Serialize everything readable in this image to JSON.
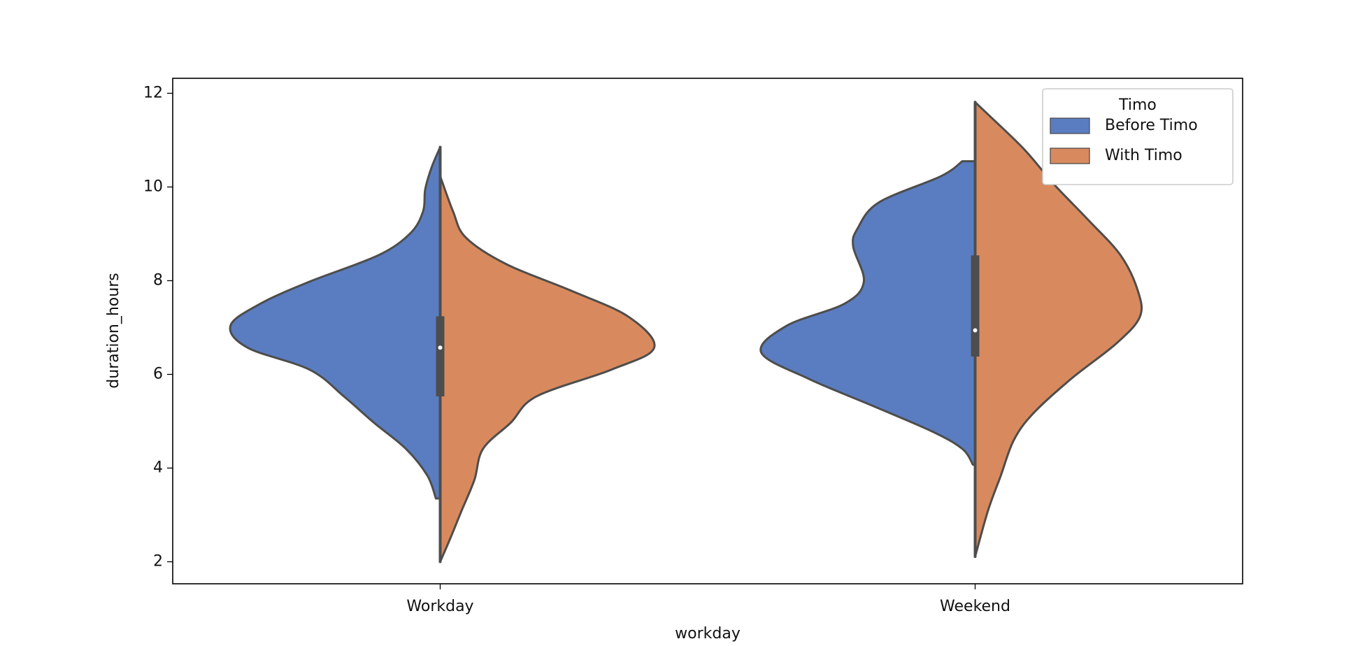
{
  "chart_data": {
    "type": "violin",
    "split": true,
    "xlabel": "workday",
    "ylabel": "duration_hours",
    "categories": [
      "Workday",
      "Weekend"
    ],
    "ylim": [
      1.53,
      12.32
    ],
    "yticks": [
      2,
      4,
      6,
      8,
      10,
      12
    ],
    "legend": {
      "title": "Timo",
      "loc": "upper right"
    },
    "edge_color": "#4d4d4d",
    "series": [
      {
        "name": "Before Timo",
        "color": "#5a7dc1",
        "side": "left",
        "violins": [
          {
            "y": [
              10.85,
              10.42,
              9.95,
              9.48,
              9.01,
              8.54,
              7.98,
              7.51,
              7.04,
              6.57,
              6.1,
              5.53,
              4.97,
              4.41,
              3.84,
              3.35
            ],
            "density": [
              0,
              0.04,
              0.07,
              0.08,
              0.14,
              0.29,
              0.61,
              0.84,
              0.98,
              0.9,
              0.61,
              0.45,
              0.31,
              0.16,
              0.06,
              0.02
            ]
          },
          {
            "y": [
              10.55,
              10.23,
              9.67,
              9.11,
              8.73,
              7.98,
              7.51,
              7.04,
              6.47,
              5.91,
              5.35,
              4.78,
              4.41,
              4.07
            ],
            "density": [
              0.06,
              0.16,
              0.45,
              0.55,
              0.57,
              0.52,
              0.61,
              0.88,
              1.0,
              0.78,
              0.49,
              0.2,
              0.06,
              0.01
            ]
          }
        ]
      },
      {
        "name": "With Timo",
        "color": "#d88a5e",
        "side": "right",
        "violins": [
          {
            "y": [
              10.23,
              9.48,
              8.92,
              8.35,
              7.79,
              7.23,
              6.57,
              6.1,
              5.53,
              4.97,
              4.41,
              3.75,
              3.09,
              2.53,
              2.0
            ],
            "density": [
              0,
              0.06,
              0.12,
              0.31,
              0.61,
              0.88,
              1.0,
              0.8,
              0.45,
              0.33,
              0.2,
              0.16,
              0.1,
              0.05,
              0
            ]
          },
          {
            "y": [
              11.81,
              11.55,
              10.8,
              10.05,
              9.29,
              8.54,
              7.79,
              7.23,
              6.66,
              5.91,
              5.16,
              4.59,
              3.84,
              3.09,
              2.11
            ],
            "density": [
              0,
              0.06,
              0.23,
              0.37,
              0.53,
              0.68,
              0.76,
              0.77,
              0.66,
              0.45,
              0.27,
              0.18,
              0.12,
              0.06,
              0
            ]
          }
        ]
      }
    ],
    "boxes": [
      {
        "whisker_low": 2.0,
        "q1": 5.53,
        "median": 6.57,
        "q3": 7.24,
        "whisker_high": 10.85
      },
      {
        "whisker_low": 2.11,
        "q1": 6.38,
        "median": 6.94,
        "q3": 8.54,
        "whisker_high": 11.81
      }
    ]
  }
}
